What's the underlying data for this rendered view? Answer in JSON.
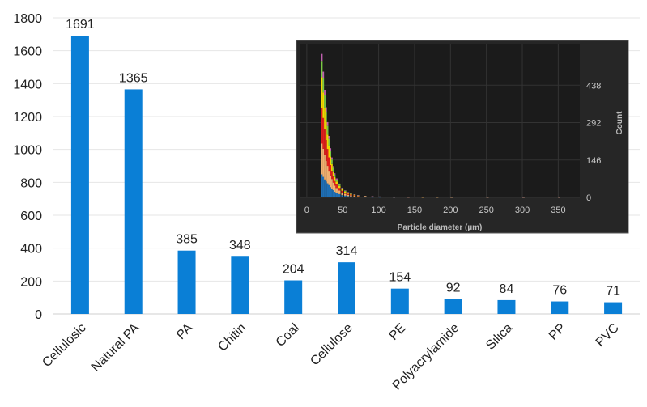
{
  "chart_data": [
    {
      "type": "bar",
      "categories": [
        "Cellulosic",
        "Natural PA",
        "PA",
        "Chitin",
        "Coal",
        "Cellulose",
        "PE",
        "Polyacrylamide",
        "Silica",
        "PP",
        "PVC"
      ],
      "values": [
        1691,
        1365,
        385,
        348,
        204,
        314,
        154,
        92,
        84,
        76,
        71
      ],
      "data_labels": [
        "1691",
        "1365",
        "385",
        "348",
        "204",
        "314",
        "154",
        "92",
        "84",
        "76",
        "71"
      ],
      "ylim": [
        0,
        1800
      ],
      "yticks": [
        0,
        200,
        400,
        600,
        800,
        1000,
        1200,
        1400,
        1600,
        1800
      ],
      "bar_color": "#0a7fd6",
      "grid": true,
      "title": "",
      "xlabel": "",
      "ylabel": ""
    },
    {
      "type": "bar",
      "subtype": "stacked-histogram",
      "xlabel": "Particle diameter (µm)",
      "ylabel": "Count",
      "xticks": [
        0,
        50,
        100,
        150,
        200,
        250,
        300,
        350
      ],
      "yticks": [
        0,
        146,
        292,
        438
      ],
      "xlim": [
        -10,
        380
      ],
      "ylim": [
        0,
        600
      ],
      "background": "#1e1e1e",
      "x": [
        20,
        22,
        24,
        26,
        28,
        30,
        32,
        34,
        36,
        38,
        40,
        44,
        48,
        52,
        56,
        60,
        65,
        70,
        80,
        90,
        100,
        120,
        140,
        160,
        180,
        200,
        250,
        300,
        350
      ],
      "series": [
        {
          "color": "#1f6fb5",
          "values": [
            90,
            80,
            70,
            62,
            55,
            48,
            40,
            34,
            28,
            22,
            18,
            13,
            9,
            7,
            5,
            4,
            3,
            2,
            1.5,
            1,
            1,
            0.5,
            0.5,
            0.3,
            0.3,
            0.2,
            0.1,
            0.1,
            0.1
          ]
        },
        {
          "color": "#f0b070",
          "values": [
            120,
            110,
            95,
            80,
            68,
            56,
            46,
            38,
            30,
            24,
            19,
            14,
            10,
            7,
            5,
            4,
            3,
            2,
            1.5,
            1,
            0.8,
            0.5,
            0.4,
            0.3,
            0.2,
            0.2,
            0.1,
            0.1,
            0.1
          ]
        },
        {
          "color": "#e0201c",
          "values": [
            140,
            120,
            100,
            82,
            66,
            52,
            40,
            32,
            24,
            18,
            14,
            10,
            7,
            5,
            4,
            3,
            2,
            1.5,
            1,
            0.8,
            0.6,
            0.4,
            0.3,
            0.2,
            0.2,
            0.1,
            0.1,
            0.1,
            0.1
          ]
        },
        {
          "color": "#f2d900",
          "values": [
            120,
            100,
            85,
            70,
            56,
            44,
            34,
            26,
            20,
            15,
            11,
            8,
            6,
            4,
            3,
            2.5,
            2,
            1.5,
            1,
            0.7,
            0.5,
            0.3,
            0.3,
            0.2,
            0.1,
            0.1,
            0.1,
            0.1,
            0.1
          ]
        },
        {
          "color": "#7ac943",
          "values": [
            60,
            55,
            48,
            40,
            34,
            28,
            22,
            18,
            14,
            10,
            8,
            6,
            4,
            3,
            2.5,
            2,
            1.5,
            1.2,
            0.8,
            0.6,
            0.4,
            0.3,
            0.2,
            0.2,
            0.1,
            0.1,
            0.1,
            0.1,
            0.1
          ]
        },
        {
          "color": "#c060b0",
          "values": [
            30,
            26,
            22,
            18,
            15,
            12,
            10,
            8,
            6,
            5,
            4,
            3,
            2,
            1.5,
            1.2,
            1,
            0.8,
            0.6,
            0.4,
            0.3,
            0.2,
            0.2,
            0.1,
            0.1,
            0.1,
            0.1,
            0.1,
            0.1,
            0.1
          ]
        }
      ]
    }
  ]
}
